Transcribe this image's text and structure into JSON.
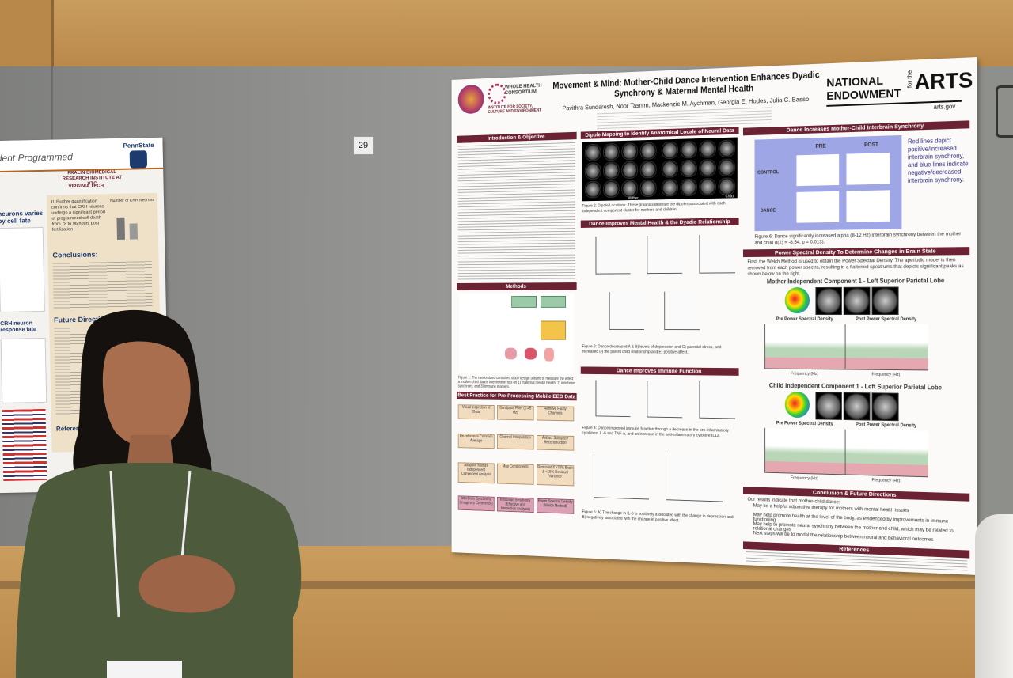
{
  "board_number": "29",
  "left_poster": {
    "header": "dent Programmed",
    "institute": "FRALIN BIOMEDICAL RESEARCH INSTITUTE AT VTC",
    "university": "VIRGINIA TECH",
    "partner": "PennState",
    "side_heading": "neurons varies by cell fate",
    "finding": "II. Further quantification confirms that CRH neurons undergo a significant period of programmed cell death from 78 to 96 hours post fertilization",
    "chart_title": "Number of CRH Neurons",
    "conclusions": "Conclusions:",
    "future": "Future Directions:",
    "response": "CRH neuron response fate",
    "references": "Referen"
  },
  "main_poster": {
    "title": "Movement & Mind: Mother-Child Dance Intervention Enhances Dyadic Synchrony & Maternal Mental Health",
    "authors": "Pavithra Sundaresh, Noor Tasnim, Mackenzie M. Aychman, Georgia E. Hodes, Julia C. Basso",
    "consortium": "WHOLE HEALTH CONSORTIUM",
    "institute": "INSTITUTE FOR SOCIETY, CULTURE AND ENVIRONMENT",
    "sponsor": {
      "line1": "NATIONAL",
      "line2": "ENDOWMENT",
      "line3": "for the",
      "line4": "ARTS",
      "url": "arts.gov"
    },
    "left_column": {
      "intro": "Introduction & Objective",
      "methods": "Methods",
      "fig1": "Figure 1: The randomized controlled study design utilized to measure the effect a mother-child dance intervention has on 1) maternal mental health, 2) interbrain synchrony, and 3) immune markers.",
      "preprocessing": "Best Practice for Pre-Processing Mobile EEG Data",
      "flow": [
        "Visual Inspection of Data",
        "Bandpass Filter (1-45 Hz)",
        "Remove Faulty Channels",
        "Re-reference Common Average",
        "Channel Interpolation",
        "Artifact Subspace Reconstruction",
        "Adaptive Mixture Independent Component Analysis",
        "Map Components",
        "Removed if >70% Brain & <15% Residual Variance",
        "Interbrain Synchrony (Imaginary Coherence)",
        "Intrabrain Synchrony (Effective and Interaction Analysis)",
        "Power Spectral Density (Welch Method)"
      ]
    },
    "middle_column": {
      "dipole": "Dipole Mapping to Identify Anatomical Locale of Neural Data",
      "mother": "Mother",
      "child": "Child",
      "fig2": "Figure 2: Dipole Locations: These graphics illustrate the dipoles associated with each independent component cluster for mothers and children.",
      "mental": "Dance Improves Mental Health & the Dyadic Relationship",
      "fig3": "Figure 3: Dance decreased A & B) levels of depression and C) parental stress, and increased D) the parent child relationship and E) positive affect.",
      "immune": "Dance Improves Immune Function",
      "fig4": "Figure 4: Dance improved immune function through a decrease in the pro-inflammatory cytokines, IL-6 and TNF-α, and an increase in the anti-inflammatory cytokine IL12.",
      "fig5": "Figure 5: A) The change in IL-6 is positively associated with the change in depression and B) negatively associated with the change in positive affect."
    },
    "right_column": {
      "synchrony": "Dance Increases Mother-Child Interbrain Synchrony",
      "pre": "PRE",
      "post": "POST",
      "control": "CONTROL",
      "dance": "DANCE",
      "legend_text": "Red lines depict positive/increased interbrain synchrony, and blue lines indicate negative/decreased interbrain synchrony.",
      "fig6": "Figure 6: Dance significantly increased alpha (8-12 Hz) interbrain synchrony between the mother and child (t(2) = -8.54, p = 0.013).",
      "psd": "Power Spectral Density To Determine Changes in Brain State",
      "psd_text": "First, the Welch Method is used to obtain the Power Spectral Density. The aperiodic model is then removed from each power spectra, resulting in a flattened spectrums that depicts significant peaks as shown below on the right.",
      "mother_ic": "Mother Independent Component 1 - Left Superior Parietal Lobe",
      "child_ic": "Child Independent Component 1 - Left Superior Parietal Lobe",
      "pre_psd": "Pre Power Spectral Density",
      "post_psd": "Post Power Spectral Density",
      "freq": "Frequency (Hz)",
      "conclusion": "Conclusion & Future Directions",
      "conclusion_intro": "Our results indicate that mother-child dance:",
      "bullets": [
        "May be a helpful adjunctive therapy for mothers with mental health issues",
        "May help promote health at the level of the body, as evidenced by improvements in immune functioning",
        "May help to promote neural synchrony between the mother and child, which may be related to relational changes",
        "Next steps will be to model the relationship between neural and behavioral outcomes"
      ],
      "references": "References"
    }
  }
}
